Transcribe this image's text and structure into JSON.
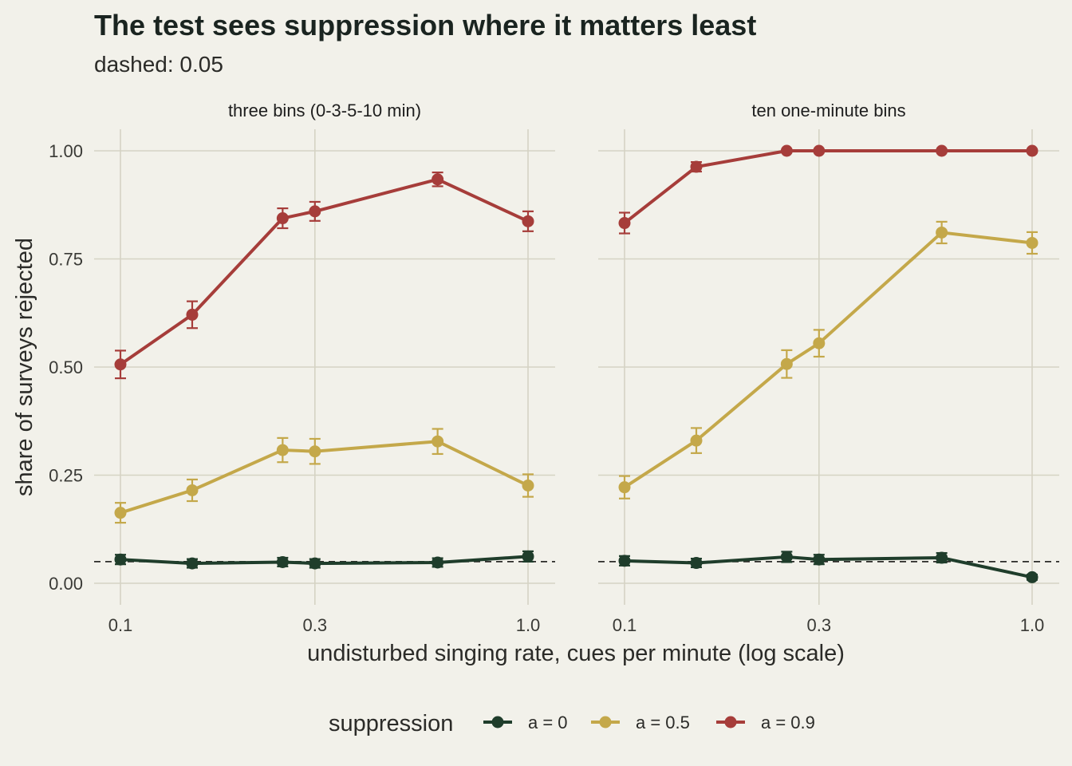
{
  "chart_data": {
    "type": "line",
    "title": "The test sees suppression where it matters least",
    "subtitle": "dashed: 0.05",
    "xlabel": "undisturbed singing rate, cues per minute (log scale)",
    "ylabel": "share of surveys rejected",
    "x_scale": "log",
    "xlim": [
      0.1,
      1.0
    ],
    "ylim": [
      0,
      1
    ],
    "x_ticks": [
      0.1,
      0.3,
      1.0
    ],
    "x_tick_labels": [
      "0.1",
      "0.3",
      "1.0"
    ],
    "y_ticks": [
      0,
      0.25,
      0.5,
      0.75,
      1.0
    ],
    "y_tick_labels": [
      "0.00",
      "0.25",
      "0.50",
      "0.75",
      "1.00"
    ],
    "reference_line": 0.05,
    "grid": true,
    "legend": {
      "title": "suppression",
      "position": "bottom"
    },
    "x": [
      0.1,
      0.15,
      0.25,
      0.3,
      0.6,
      1.0
    ],
    "panels": [
      {
        "title": "three bins (0-3-5-10 min)",
        "series": [
          {
            "name": "a = 0",
            "color": "#1f3d2b",
            "values": [
              0.055,
              0.046,
              0.049,
              0.046,
              0.048,
              0.062
            ],
            "lower": [
              0.044,
              0.036,
              0.039,
              0.036,
              0.038,
              0.05
            ],
            "upper": [
              0.066,
              0.056,
              0.059,
              0.056,
              0.058,
              0.074
            ]
          },
          {
            "name": "a = 0.5",
            "color": "#c4a84a",
            "values": [
              0.163,
              0.215,
              0.308,
              0.305,
              0.328,
              0.226
            ],
            "lower": [
              0.14,
              0.19,
              0.28,
              0.276,
              0.299,
              0.2
            ],
            "upper": [
              0.186,
              0.24,
              0.336,
              0.334,
              0.357,
              0.252
            ]
          },
          {
            "name": "a = 0.9",
            "color": "#a63d3a",
            "values": [
              0.506,
              0.621,
              0.844,
              0.86,
              0.934,
              0.837
            ],
            "lower": [
              0.474,
              0.59,
              0.821,
              0.838,
              0.918,
              0.814
            ],
            "upper": [
              0.538,
              0.652,
              0.867,
              0.882,
              0.95,
              0.86
            ]
          }
        ]
      },
      {
        "title": "ten one-minute bins",
        "series": [
          {
            "name": "a = 0",
            "color": "#1f3d2b",
            "values": [
              0.052,
              0.047,
              0.061,
              0.055,
              0.059,
              0.014
            ],
            "lower": [
              0.041,
              0.037,
              0.049,
              0.044,
              0.048,
              0.008
            ],
            "upper": [
              0.063,
              0.057,
              0.073,
              0.066,
              0.07,
              0.02
            ]
          },
          {
            "name": "a = 0.5",
            "color": "#c4a84a",
            "values": [
              0.222,
              0.33,
              0.507,
              0.555,
              0.811,
              0.787
            ],
            "lower": [
              0.196,
              0.301,
              0.475,
              0.524,
              0.786,
              0.762
            ],
            "upper": [
              0.248,
              0.359,
              0.539,
              0.586,
              0.836,
              0.812
            ]
          },
          {
            "name": "a = 0.9",
            "color": "#a63d3a",
            "values": [
              0.833,
              0.963,
              1.0,
              1.0,
              1.0,
              1.0
            ],
            "lower": [
              0.809,
              0.952,
              1.0,
              1.0,
              1.0,
              1.0
            ],
            "upper": [
              0.857,
              0.974,
              1.0,
              1.0,
              1.0,
              1.0
            ]
          }
        ]
      }
    ]
  }
}
